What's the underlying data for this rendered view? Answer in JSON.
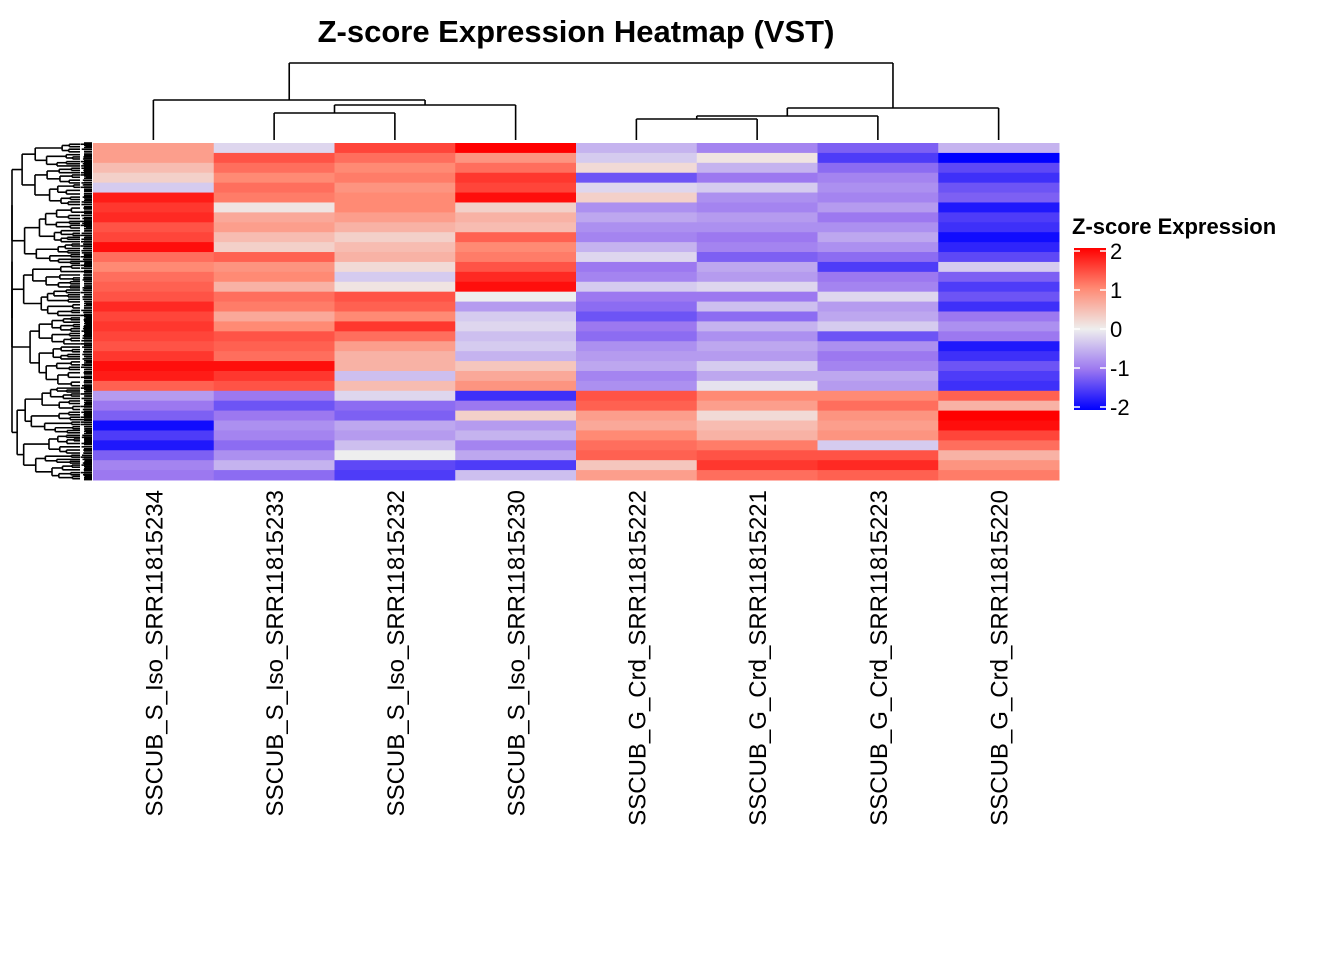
{
  "chart_data": {
    "type": "heatmap",
    "title": "Z-score Expression Heatmap (VST)",
    "legend": {
      "title": "Z-score Expression",
      "ticks": [
        2,
        1,
        0,
        -1,
        -2
      ],
      "tick_labels": [
        "2",
        "1",
        "0",
        "-1",
        "-2"
      ],
      "placement": "right",
      "colors": {
        "low": "#0000FF",
        "mid": "#EEEEEE",
        "high": "#FF0000"
      },
      "range": [
        -2,
        2
      ]
    },
    "columns": [
      "SSCUB_S_Iso_SRR11815234",
      "SSCUB_S_Iso_SRR11815233",
      "SSCUB_S_Iso_SRR11815232",
      "SSCUB_S_Iso_SRR11815230",
      "SSCUB_G_Crd_SRR11815222",
      "SSCUB_G_Crd_SRR11815221",
      "SSCUB_G_Crd_SRR11815223",
      "SSCUB_G_Crd_SRR11815220"
    ],
    "row_dendrogram": true,
    "column_dendrogram": true,
    "values_by_column_row_bins": [
      [
        0.8,
        0.8,
        0.5,
        0.3,
        -0.3,
        1.8,
        1.6,
        1.7,
        1.4,
        1.5,
        1.9,
        1.2,
        1.0,
        1.2,
        1.3,
        1.4,
        1.7,
        1.5,
        1.6,
        1.5,
        1.4,
        1.6,
        1.9,
        1.8,
        1.3,
        -0.7,
        -1.0,
        -1.2,
        -1.9,
        -1.5,
        -1.8,
        -1.2,
        -0.9,
        -1.0
      ],
      [
        -0.2,
        1.4,
        1.2,
        1.0,
        1.2,
        1.1,
        0.1,
        0.7,
        0.8,
        0.5,
        0.3,
        1.3,
        0.9,
        1.0,
        0.6,
        1.2,
        1.1,
        0.7,
        1.0,
        1.4,
        1.3,
        1.2,
        1.9,
        1.6,
        1.4,
        -1.0,
        -1.3,
        -1.0,
        -0.8,
        -0.9,
        -1.1,
        -0.8,
        -0.5,
        -1.1
      ],
      [
        1.5,
        1.2,
        1.0,
        1.1,
        0.9,
        1.0,
        1.0,
        0.8,
        0.6,
        0.3,
        0.5,
        0.6,
        0.2,
        -0.3,
        0.1,
        1.4,
        1.3,
        1.0,
        1.6,
        1.2,
        0.8,
        0.6,
        0.6,
        -0.4,
        0.5,
        -0.2,
        -1.1,
        -1.2,
        -0.6,
        -0.7,
        -0.4,
        0.0,
        -1.4,
        -1.5
      ],
      [
        2.0,
        0.9,
        1.2,
        1.6,
        1.5,
        1.9,
        0.3,
        0.6,
        0.5,
        1.3,
        1.0,
        1.1,
        1.4,
        1.7,
        1.9,
        0.0,
        -0.7,
        -0.3,
        -0.2,
        -0.4,
        -0.3,
        -0.5,
        0.4,
        0.7,
        0.9,
        -1.6,
        -1.0,
        0.3,
        -0.7,
        -0.5,
        -0.9,
        -0.6,
        -1.5,
        -0.4
      ],
      [
        -0.5,
        -0.3,
        0.2,
        -1.3,
        -0.2,
        0.3,
        -0.8,
        -0.6,
        -0.8,
        -0.9,
        -0.5,
        -0.2,
        -1.0,
        -0.9,
        -0.3,
        -1.0,
        -1.1,
        -1.3,
        -1.0,
        -1.1,
        -0.8,
        -0.7,
        -0.6,
        -0.9,
        -0.8,
        1.4,
        1.3,
        0.8,
        0.7,
        1.0,
        1.2,
        1.3,
        0.4,
        0.8
      ],
      [
        -0.9,
        0.1,
        -0.5,
        -1.0,
        -0.3,
        -0.8,
        -0.9,
        -0.7,
        -0.8,
        -1.0,
        -0.9,
        -1.2,
        -0.6,
        -0.7,
        -0.2,
        -1.0,
        -0.4,
        -1.1,
        -0.5,
        -0.8,
        -0.6,
        -0.7,
        -0.3,
        -0.6,
        -0.1,
        1.0,
        0.8,
        0.2,
        0.5,
        0.6,
        1.1,
        1.4,
        1.6,
        1.2
      ],
      [
        -1.2,
        -1.5,
        -1.1,
        -0.9,
        -0.8,
        -0.9,
        -0.7,
        -1.0,
        -0.8,
        -0.6,
        -0.8,
        -1.1,
        -1.5,
        -1.0,
        -0.9,
        -0.2,
        -0.7,
        -0.6,
        -0.3,
        -1.3,
        -0.8,
        -1.0,
        -0.9,
        -0.6,
        -0.7,
        1.0,
        1.2,
        0.9,
        0.8,
        0.9,
        -0.3,
        1.4,
        1.7,
        1.3
      ],
      [
        -0.5,
        -2.0,
        -1.4,
        -1.6,
        -1.3,
        -1.2,
        -1.8,
        -1.5,
        -1.6,
        -1.9,
        -1.7,
        -1.4,
        -0.3,
        -1.2,
        -1.5,
        -1.3,
        -1.6,
        -1.0,
        -0.8,
        -1.0,
        -1.8,
        -1.6,
        -1.3,
        -1.5,
        -1.6,
        1.3,
        0.6,
        2.0,
        1.9,
        1.5,
        1.2,
        0.6,
        0.9,
        1.1
      ]
    ]
  }
}
